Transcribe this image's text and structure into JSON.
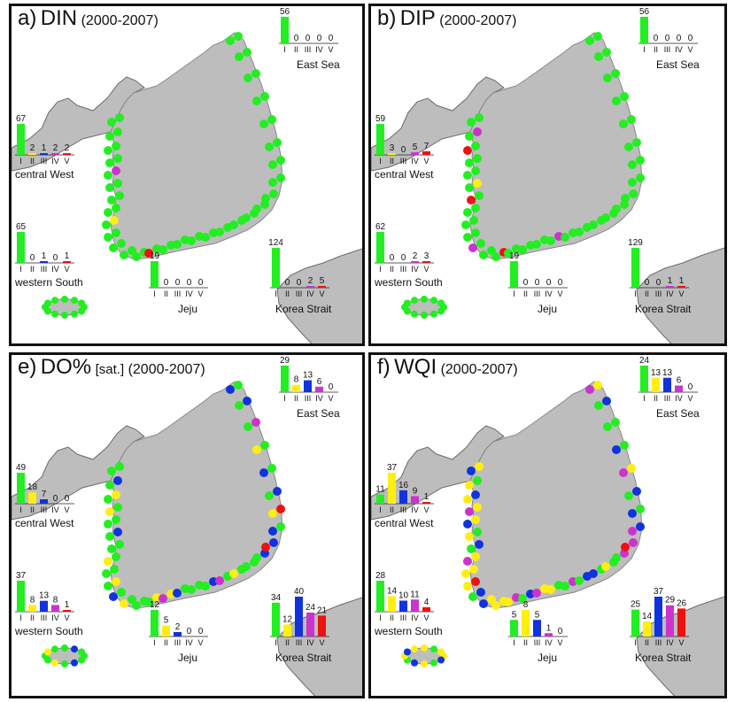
{
  "colors": {
    "I": "#22ee22",
    "II": "#ffee11",
    "III": "#1133dd",
    "IV": "#cc33cc",
    "V": "#ee1111",
    "land": "#bdbdbd",
    "land_edge": "#6a6a6a"
  },
  "classes": [
    "I",
    "II",
    "III",
    "IV",
    "V"
  ],
  "panels": {
    "a": {
      "letter": "a)",
      "name": "DIN",
      "sub": "",
      "period": "(2000-2007)"
    },
    "b": {
      "letter": "b)",
      "name": "DIP",
      "sub": "",
      "period": "(2000-2007)"
    },
    "e": {
      "letter": "e)",
      "name": "DO%",
      "sub": "[sat.]",
      "period": "(2000-2007)"
    },
    "f": {
      "letter": "f)",
      "name": "WQI",
      "sub": "",
      "period": "(2000-2007)"
    }
  },
  "chart_data": [
    {
      "type": "bar",
      "title": "a) DIN (2000-2007)",
      "categories": [
        "I",
        "II",
        "III",
        "IV",
        "V"
      ],
      "series": [
        {
          "name": "East Sea",
          "values": [
            56,
            0,
            0,
            0,
            0
          ]
        },
        {
          "name": "central West",
          "values": [
            67,
            2,
            1,
            2,
            2
          ]
        },
        {
          "name": "western South",
          "values": [
            65,
            0,
            1,
            0,
            1
          ]
        },
        {
          "name": "Jeju",
          "values": [
            19,
            0,
            0,
            0,
            0
          ]
        },
        {
          "name": "Korea Strait",
          "values": [
            124,
            0,
            0,
            2,
            5
          ]
        }
      ]
    },
    {
      "type": "bar",
      "title": "b) DIP (2000-2007)",
      "categories": [
        "I",
        "II",
        "III",
        "IV",
        "V"
      ],
      "series": [
        {
          "name": "East Sea",
          "values": [
            56,
            0,
            0,
            0,
            0
          ]
        },
        {
          "name": "central West",
          "values": [
            59,
            3,
            0,
            5,
            7
          ]
        },
        {
          "name": "western South",
          "values": [
            62,
            0,
            0,
            2,
            3
          ]
        },
        {
          "name": "Jeju",
          "values": [
            19,
            0,
            0,
            0,
            0
          ]
        },
        {
          "name": "Korea Strait",
          "values": [
            129,
            0,
            0,
            1,
            1
          ]
        }
      ]
    },
    {
      "type": "bar",
      "title": "e) DO% [sat.] (2000-2007)",
      "categories": [
        "I",
        "II",
        "III",
        "IV",
        "V"
      ],
      "series": [
        {
          "name": "East Sea",
          "values": [
            29,
            8,
            13,
            6,
            0
          ]
        },
        {
          "name": "central West",
          "values": [
            49,
            18,
            7,
            0,
            0
          ]
        },
        {
          "name": "western South",
          "values": [
            37,
            8,
            13,
            8,
            1
          ]
        },
        {
          "name": "Jeju",
          "values": [
            12,
            5,
            2,
            0,
            0
          ]
        },
        {
          "name": "Korea Strait",
          "values": [
            34,
            12,
            40,
            24,
            21
          ]
        }
      ]
    },
    {
      "type": "bar",
      "title": "f) WQI (2000-2007)",
      "categories": [
        "I",
        "II",
        "III",
        "IV",
        "V"
      ],
      "series": [
        {
          "name": "East Sea",
          "values": [
            24,
            13,
            13,
            6,
            0
          ]
        },
        {
          "name": "central West",
          "values": [
            11,
            37,
            16,
            9,
            1
          ]
        },
        {
          "name": "western South",
          "values": [
            28,
            14,
            10,
            11,
            4
          ]
        },
        {
          "name": "Jeju",
          "values": [
            5,
            8,
            5,
            1,
            0
          ]
        },
        {
          "name": "Korea Strait",
          "values": [
            25,
            14,
            37,
            29,
            26
          ]
        }
      ]
    }
  ]
}
